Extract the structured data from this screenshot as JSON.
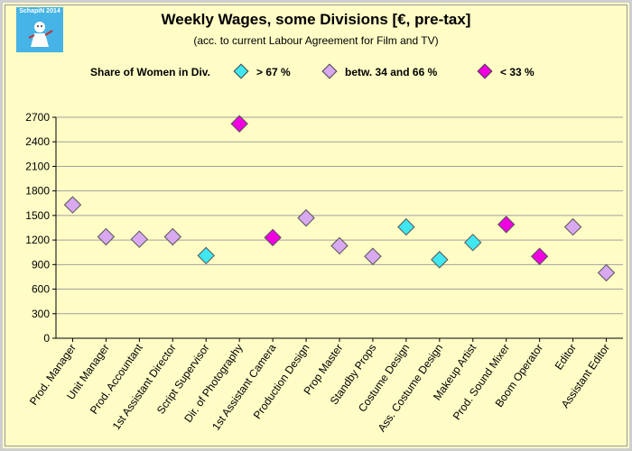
{
  "logo": {
    "text": "SchapiN 2014"
  },
  "chart_data": {
    "type": "scatter",
    "title": "Weekly Wages, some Divisions  [€, pre-tax]",
    "subtitle": "(acc. to current Labour Agreement for Film and TV)",
    "xlabel": "",
    "ylabel": "",
    "ylim": [
      0,
      2700
    ],
    "yticks": [
      0,
      300,
      600,
      900,
      1200,
      1500,
      1800,
      2100,
      2400,
      2700
    ],
    "grid": true,
    "legend_title": "Share of Women in Div.",
    "legend": [
      {
        "key": "high",
        "label": "> 67 %",
        "color": "#40e6f0"
      },
      {
        "key": "mid",
        "label": "betw.  34 and 66 %",
        "color": "#d8a8f0"
      },
      {
        "key": "low",
        "label": "< 33 %",
        "color": "#f000e0"
      }
    ],
    "categories": [
      "Prod. Manager",
      "Unit Manager",
      "Prod. Accountant",
      "1st Assistant Director",
      "Script Supervisor",
      "Dir. of Photography",
      "1st Assistant Camera",
      "Production Design",
      "Prop Master",
      "Standby Props",
      "Costume Design",
      "Ass. Costume Design",
      "Makeup Artist",
      "Prod. Sound Mixer",
      "Boom Operator",
      "Editor",
      "Assistant Editor"
    ],
    "values": [
      1630,
      1240,
      1210,
      1240,
      1010,
      2620,
      1230,
      1470,
      1130,
      1000,
      1360,
      960,
      1170,
      1390,
      1000,
      1360,
      800
    ],
    "groups": [
      "mid",
      "mid",
      "mid",
      "mid",
      "high",
      "low",
      "low",
      "mid",
      "mid",
      "mid",
      "high",
      "high",
      "high",
      "low",
      "low",
      "mid",
      "mid"
    ]
  }
}
